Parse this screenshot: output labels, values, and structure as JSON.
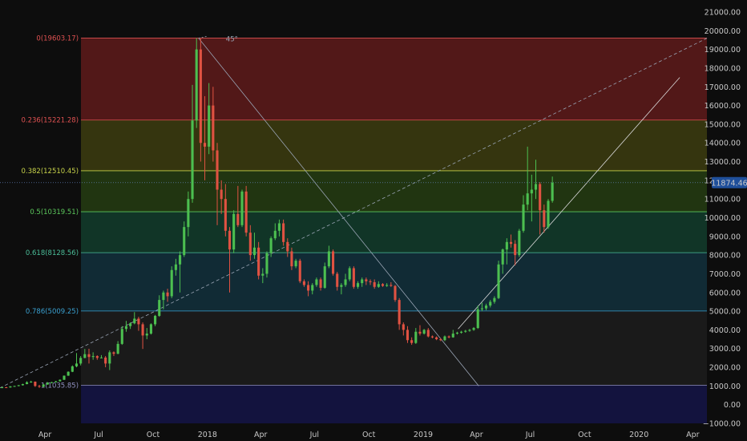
{
  "chart_data": {
    "type": "candlestick",
    "colors": {
      "background": "#0d0d0d",
      "up": "#4cbf50",
      "down": "#e05242",
      "axis_text": "#c8c8c8",
      "price_label_bg": "#1f4f9a"
    },
    "y_axis": {
      "ylim": [
        -1000,
        21300
      ],
      "ticks": [
        -1000,
        0,
        1000,
        2000,
        3000,
        4000,
        5000,
        6000,
        7000,
        8000,
        9000,
        10000,
        11000,
        12000,
        13000,
        14000,
        15000,
        16000,
        17000,
        18000,
        19000,
        20000,
        21000
      ],
      "tick_labels": [
        "−1000.00",
        "0.00",
        "1000.00",
        "2000.00",
        "3000.00",
        "4000.00",
        "5000.00",
        "6000.00",
        "7000.00",
        "8000.00",
        "9000.00",
        "10000.00",
        "11000.00",
        "12000.00",
        "13000.00",
        "14000.00",
        "15000.00",
        "16000.00",
        "17000.00",
        "18000.00",
        "19000.00",
        "20000.00",
        "21000.00"
      ]
    },
    "x_axis": {
      "xlim": [
        "2017-01-15",
        "2020-04-25"
      ],
      "ticks": [
        {
          "date": "2017-04-01",
          "label": "Apr"
        },
        {
          "date": "2017-07-01",
          "label": "Jul"
        },
        {
          "date": "2017-10-01",
          "label": "Oct"
        },
        {
          "date": "2018-01-01",
          "label": "2018"
        },
        {
          "date": "2018-04-01",
          "label": "Apr"
        },
        {
          "date": "2018-07-01",
          "label": "Jul"
        },
        {
          "date": "2018-10-01",
          "label": "Oct"
        },
        {
          "date": "2019-01-01",
          "label": "2019"
        },
        {
          "date": "2019-04-01",
          "label": "Apr"
        },
        {
          "date": "2019-07-01",
          "label": "Jul"
        },
        {
          "date": "2019-10-01",
          "label": "Oct"
        },
        {
          "date": "2020-01-01",
          "label": "2020"
        },
        {
          "date": "2020-04-01",
          "label": "Apr"
        }
      ]
    },
    "last_price": {
      "value": 11874.46,
      "label": "11874.46"
    },
    "fib_start": "2017-06-01",
    "fib_levels": [
      {
        "ratio": "0",
        "price": 19603.17,
        "label": "0(19603.17)",
        "color": "#e05252",
        "fill": "#5a1a1a"
      },
      {
        "ratio": "0.236",
        "price": 15221.28,
        "label": "0.236(15221.28)",
        "color": "#e05252",
        "fill": "#3a3a10"
      },
      {
        "ratio": "0.382",
        "price": 12510.45,
        "label": "0.382(12510.45)",
        "color": "#c8d34a",
        "fill": "#243a12"
      },
      {
        "ratio": "0.5",
        "price": 10319.51,
        "label": "0.5(10319.51)",
        "color": "#5cc85c",
        "fill": "#123a2a"
      },
      {
        "ratio": "0.618",
        "price": 8128.56,
        "label": "0.618(8128.56)",
        "color": "#4bbf9a",
        "fill": "#122f3a"
      },
      {
        "ratio": "0.786",
        "price": 5009.25,
        "label": "0.786(5009.25)",
        "color": "#3aa0d0",
        "fill": "#1c1c1c"
      },
      {
        "ratio": "1",
        "price": 1035.85,
        "label": "1(1035.85)",
        "color": "#9090c0",
        "fill": "#141444"
      }
    ],
    "fib_floor": -1000,
    "angle_annotation": "45°",
    "trendlines": [
      {
        "name": "peak-to-bottom",
        "from": [
          "2017-12-17",
          19603
        ],
        "to": [
          "2019-04-05",
          1000
        ],
        "style": "solid",
        "color": "#9aa5b5"
      },
      {
        "name": "long-dashed",
        "from": [
          "2017-01-15",
          900
        ],
        "to": [
          "2020-04-25",
          19600
        ],
        "style": "dashed",
        "color": "#9aa5b5"
      },
      {
        "name": "2019-uptrend",
        "from": [
          "2019-03-01",
          4050
        ],
        "to": [
          "2020-03-10",
          17500
        ],
        "style": "solid",
        "color": "#d8d8d8"
      },
      {
        "name": "angle-ray",
        "from": [
          "2017-12-17",
          19603
        ],
        "to": [
          "2017-12-31",
          19700
        ],
        "style": "dotted",
        "color": "#9aa5b5"
      }
    ],
    "candles": [
      [
        "2017-01-15",
        900,
        950,
        880,
        930
      ],
      [
        "2017-01-22",
        930,
        950,
        900,
        920
      ],
      [
        "2017-01-29",
        920,
        990,
        910,
        980
      ],
      [
        "2017-02-05",
        980,
        1010,
        950,
        1000
      ],
      [
        "2017-02-12",
        1000,
        1050,
        980,
        1040
      ],
      [
        "2017-02-19",
        1040,
        1120,
        1020,
        1100
      ],
      [
        "2017-02-26",
        1100,
        1250,
        1090,
        1200
      ],
      [
        "2017-03-05",
        1200,
        1280,
        1170,
        1230
      ],
      [
        "2017-03-12",
        1230,
        1240,
        950,
        1000
      ],
      [
        "2017-03-19",
        1000,
        1060,
        900,
        960
      ],
      [
        "2017-03-26",
        960,
        1120,
        940,
        1080
      ],
      [
        "2017-04-02",
        1080,
        1200,
        1060,
        1180
      ],
      [
        "2017-04-09",
        1180,
        1220,
        1140,
        1200
      ],
      [
        "2017-04-16",
        1200,
        1270,
        1190,
        1250
      ],
      [
        "2017-04-23",
        1250,
        1350,
        1240,
        1330
      ],
      [
        "2017-04-30",
        1330,
        1560,
        1320,
        1550
      ],
      [
        "2017-05-07",
        1550,
        1780,
        1540,
        1760
      ],
      [
        "2017-05-14",
        1760,
        2100,
        1740,
        2050
      ],
      [
        "2017-05-21",
        2050,
        2760,
        2000,
        2200
      ],
      [
        "2017-05-28",
        2200,
        2600,
        2100,
        2500
      ],
      [
        "2017-06-04",
        2500,
        2980,
        2480,
        2700
      ],
      [
        "2017-06-11",
        2700,
        2990,
        2200,
        2550
      ],
      [
        "2017-06-18",
        2550,
        2800,
        2400,
        2600
      ],
      [
        "2017-06-25",
        2600,
        2640,
        2400,
        2500
      ],
      [
        "2017-07-02",
        2500,
        2650,
        2480,
        2520
      ],
      [
        "2017-07-09",
        2520,
        2600,
        2000,
        2200
      ],
      [
        "2017-07-16",
        2200,
        2900,
        1850,
        2800
      ],
      [
        "2017-07-23",
        2800,
        2850,
        2600,
        2720
      ],
      [
        "2017-07-30",
        2720,
        3400,
        2700,
        3250
      ],
      [
        "2017-08-06",
        3250,
        4200,
        3200,
        4050
      ],
      [
        "2017-08-13",
        4050,
        4480,
        3900,
        4200
      ],
      [
        "2017-08-20",
        4200,
        4400,
        4050,
        4350
      ],
      [
        "2017-08-27",
        4350,
        4950,
        4300,
        4600
      ],
      [
        "2017-09-03",
        4600,
        4700,
        3950,
        4300
      ],
      [
        "2017-09-10",
        4300,
        4400,
        2980,
        3700
      ],
      [
        "2017-09-17",
        3700,
        4100,
        3500,
        3800
      ],
      [
        "2017-09-24",
        3800,
        4350,
        3750,
        4300
      ],
      [
        "2017-10-01",
        4300,
        4800,
        4200,
        4750
      ],
      [
        "2017-10-08",
        4750,
        5850,
        4700,
        5600
      ],
      [
        "2017-10-15",
        5600,
        6100,
        5100,
        6000
      ],
      [
        "2017-10-22",
        6000,
        6200,
        5500,
        5800
      ],
      [
        "2017-10-29",
        5800,
        7400,
        5700,
        7200
      ],
      [
        "2017-11-05",
        7200,
        7800,
        6900,
        7500
      ],
      [
        "2017-11-12",
        7500,
        8200,
        6000,
        8000
      ],
      [
        "2017-11-19",
        8000,
        9800,
        7900,
        9500
      ],
      [
        "2017-11-26",
        9500,
        11400,
        9000,
        11000
      ],
      [
        "2017-12-03",
        11000,
        17100,
        10800,
        15200
      ],
      [
        "2017-12-10",
        15200,
        19603,
        14800,
        19000
      ],
      [
        "2017-12-17",
        19000,
        19603,
        13000,
        14000
      ],
      [
        "2017-12-24",
        14000,
        16500,
        12000,
        13800
      ],
      [
        "2017-12-31",
        13800,
        17200,
        13400,
        16000
      ],
      [
        "2018-01-07",
        16000,
        17000,
        13000,
        13600
      ],
      [
        "2018-01-14",
        13600,
        14000,
        9600,
        11500
      ],
      [
        "2018-01-21",
        11500,
        12000,
        10200,
        11000
      ],
      [
        "2018-01-28",
        11000,
        11800,
        9000,
        9300
      ],
      [
        "2018-02-04",
        9300,
        9500,
        6000,
        8300
      ],
      [
        "2018-02-11",
        8300,
        10400,
        8100,
        10200
      ],
      [
        "2018-02-18",
        10200,
        11700,
        9500,
        9600
      ],
      [
        "2018-02-25",
        9600,
        11500,
        9500,
        11400
      ],
      [
        "2018-03-04",
        11400,
        11700,
        9000,
        9200
      ],
      [
        "2018-03-11",
        9200,
        9600,
        7700,
        8000
      ],
      [
        "2018-03-18",
        8000,
        9200,
        7800,
        8400
      ],
      [
        "2018-03-25",
        8400,
        8700,
        6700,
        6900
      ],
      [
        "2018-04-01",
        6900,
        7300,
        6500,
        7000
      ],
      [
        "2018-04-08",
        7000,
        8200,
        6800,
        8100
      ],
      [
        "2018-04-15",
        8100,
        9000,
        7900,
        8900
      ],
      [
        "2018-04-22",
        8900,
        9700,
        8800,
        9300
      ],
      [
        "2018-04-29",
        9300,
        9900,
        9000,
        9700
      ],
      [
        "2018-05-06",
        9700,
        9900,
        8500,
        8700
      ],
      [
        "2018-05-13",
        8700,
        8900,
        7900,
        8200
      ],
      [
        "2018-05-20",
        8200,
        8400,
        7200,
        7400
      ],
      [
        "2018-05-27",
        7400,
        7800,
        7300,
        7700
      ],
      [
        "2018-06-03",
        7700,
        7800,
        6500,
        6600
      ],
      [
        "2018-06-10",
        6600,
        6700,
        6300,
        6400
      ],
      [
        "2018-06-17",
        6400,
        6600,
        5800,
        6100
      ],
      [
        "2018-06-24",
        6100,
        6500,
        5900,
        6400
      ],
      [
        "2018-07-01",
        6400,
        6800,
        6300,
        6700
      ],
      [
        "2018-07-08",
        6700,
        6800,
        6100,
        6250
      ],
      [
        "2018-07-15",
        6250,
        7600,
        6200,
        7400
      ],
      [
        "2018-07-22",
        7400,
        8500,
        7300,
        8200
      ],
      [
        "2018-07-29",
        8200,
        8300,
        6900,
        7000
      ],
      [
        "2018-08-05",
        7000,
        7100,
        6100,
        6300
      ],
      [
        "2018-08-12",
        6300,
        6500,
        5900,
        6400
      ],
      [
        "2018-08-19",
        6400,
        7000,
        6300,
        6700
      ],
      [
        "2018-08-26",
        6700,
        7400,
        6600,
        7300
      ],
      [
        "2018-09-02",
        7300,
        7400,
        6200,
        6300
      ],
      [
        "2018-09-09",
        6300,
        6600,
        6200,
        6500
      ],
      [
        "2018-09-16",
        6500,
        6800,
        6300,
        6700
      ],
      [
        "2018-09-23",
        6700,
        6800,
        6400,
        6600
      ],
      [
        "2018-09-30",
        6600,
        6700,
        6400,
        6550
      ],
      [
        "2018-10-07",
        6550,
        6700,
        6200,
        6300
      ],
      [
        "2018-10-14",
        6300,
        6600,
        6250,
        6450
      ],
      [
        "2018-10-21",
        6450,
        6500,
        6300,
        6350
      ],
      [
        "2018-10-28",
        6350,
        6500,
        6300,
        6400
      ],
      [
        "2018-11-04",
        6400,
        6550,
        6300,
        6350
      ],
      [
        "2018-11-11",
        6350,
        6400,
        5500,
        5600
      ],
      [
        "2018-11-18",
        5600,
        5700,
        4000,
        4300
      ],
      [
        "2018-11-25",
        4300,
        4400,
        3700,
        4000
      ],
      [
        "2018-12-02",
        4000,
        4200,
        3300,
        3450
      ],
      [
        "2018-12-09",
        3450,
        3600,
        3200,
        3300
      ],
      [
        "2018-12-16",
        3300,
        4100,
        3250,
        3900
      ],
      [
        "2018-12-23",
        3900,
        4250,
        3700,
        3800
      ],
      [
        "2018-12-30",
        3800,
        4050,
        3750,
        4000
      ],
      [
        "2019-01-06",
        4000,
        4100,
        3600,
        3650
      ],
      [
        "2019-01-13",
        3650,
        3700,
        3550,
        3600
      ],
      [
        "2019-01-20",
        3600,
        3650,
        3450,
        3500
      ],
      [
        "2019-01-27",
        3500,
        3550,
        3400,
        3450
      ],
      [
        "2019-02-03",
        3450,
        3700,
        3400,
        3650
      ],
      [
        "2019-02-10",
        3650,
        3700,
        3550,
        3600
      ],
      [
        "2019-02-17",
        3600,
        4000,
        3580,
        3800
      ],
      [
        "2019-02-24",
        3800,
        3900,
        3750,
        3850
      ],
      [
        "2019-03-03",
        3850,
        3950,
        3800,
        3900
      ],
      [
        "2019-03-10",
        3900,
        4000,
        3850,
        3950
      ],
      [
        "2019-03-17",
        3950,
        4050,
        3900,
        4000
      ],
      [
        "2019-03-24",
        4000,
        4150,
        3950,
        4100
      ],
      [
        "2019-03-31",
        4100,
        5300,
        4050,
        5100
      ],
      [
        "2019-04-07",
        5100,
        5450,
        5000,
        5150
      ],
      [
        "2019-04-14",
        5150,
        5400,
        5050,
        5300
      ],
      [
        "2019-04-21",
        5300,
        5600,
        5200,
        5500
      ],
      [
        "2019-04-28",
        5500,
        5800,
        5400,
        5700
      ],
      [
        "2019-05-05",
        5700,
        7700,
        5650,
        7500
      ],
      [
        "2019-05-12",
        7500,
        8350,
        7000,
        8300
      ],
      [
        "2019-05-19",
        8300,
        8900,
        7500,
        8700
      ],
      [
        "2019-05-26",
        8700,
        9100,
        8400,
        8600
      ],
      [
        "2019-06-02",
        8600,
        8800,
        7450,
        8000
      ],
      [
        "2019-06-09",
        8000,
        9400,
        7900,
        9300
      ],
      [
        "2019-06-16",
        9300,
        11200,
        9200,
        10700
      ],
      [
        "2019-06-23",
        10700,
        13800,
        10400,
        11300
      ],
      [
        "2019-06-30",
        11300,
        12300,
        9800,
        11500
      ],
      [
        "2019-07-07",
        11500,
        13100,
        11000,
        11800
      ],
      [
        "2019-07-14",
        11800,
        11900,
        9100,
        10400
      ],
      [
        "2019-07-21",
        10400,
        10700,
        9200,
        9500
      ],
      [
        "2019-07-28",
        9500,
        11000,
        9400,
        10900
      ],
      [
        "2019-08-04",
        10900,
        12200,
        10800,
        11874.46
      ]
    ]
  }
}
